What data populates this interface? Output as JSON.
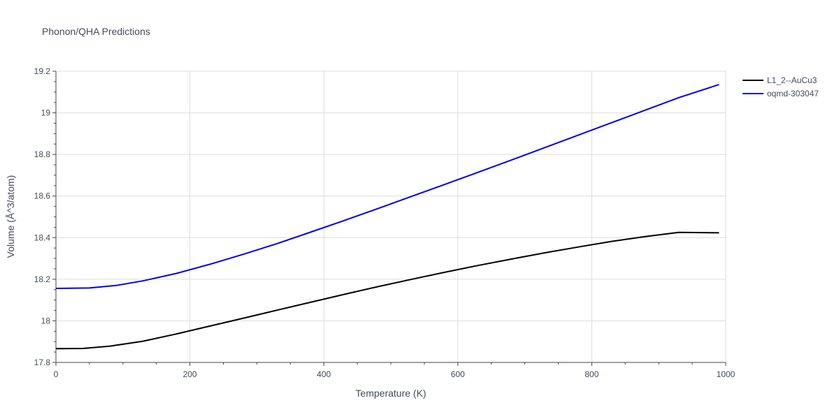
{
  "chart_data": {
    "type": "line",
    "title": "Phonon/QHA Predictions",
    "xlabel": "Temperature (K)",
    "ylabel": "Volume (Å^3/atom)",
    "xlim": [
      0,
      1000
    ],
    "ylim": [
      17.8,
      19.2
    ],
    "xticks": [
      0,
      200,
      400,
      600,
      800,
      1000
    ],
    "xtick_labels": [
      "0",
      "200",
      "400",
      "600",
      "800",
      "1000"
    ],
    "yticks": [
      17.8,
      18.0,
      18.2,
      18.4,
      18.6,
      18.8,
      19.0,
      19.2
    ],
    "ytick_labels": [
      "17.8",
      "18",
      "18.2",
      "18.4",
      "18.6",
      "18.8",
      "19",
      "19.2"
    ],
    "grid": true,
    "legend_position": "top-right",
    "series": [
      {
        "name": "L1_2--AuCu3",
        "color": "#000000",
        "x": [
          0,
          40,
          80,
          130,
          180,
          230,
          280,
          330,
          380,
          430,
          480,
          530,
          580,
          630,
          680,
          730,
          780,
          830,
          880,
          930,
          990
        ],
        "y": [
          17.866,
          17.867,
          17.878,
          17.902,
          17.937,
          17.975,
          18.013,
          18.051,
          18.089,
          18.127,
          18.164,
          18.199,
          18.233,
          18.266,
          18.297,
          18.327,
          18.355,
          18.382,
          18.405,
          18.425,
          18.423
        ]
      },
      {
        "name": "oqmd-303047",
        "color": "#0000ee",
        "x": [
          0,
          50,
          90,
          130,
          180,
          230,
          280,
          330,
          380,
          430,
          480,
          530,
          580,
          630,
          680,
          730,
          780,
          830,
          880,
          930,
          990
        ],
        "y": [
          18.156,
          18.158,
          18.17,
          18.192,
          18.228,
          18.272,
          18.32,
          18.371,
          18.426,
          18.482,
          18.539,
          18.597,
          18.655,
          18.714,
          18.773,
          18.833,
          18.893,
          18.953,
          19.013,
          19.073,
          19.136
        ]
      }
    ]
  }
}
